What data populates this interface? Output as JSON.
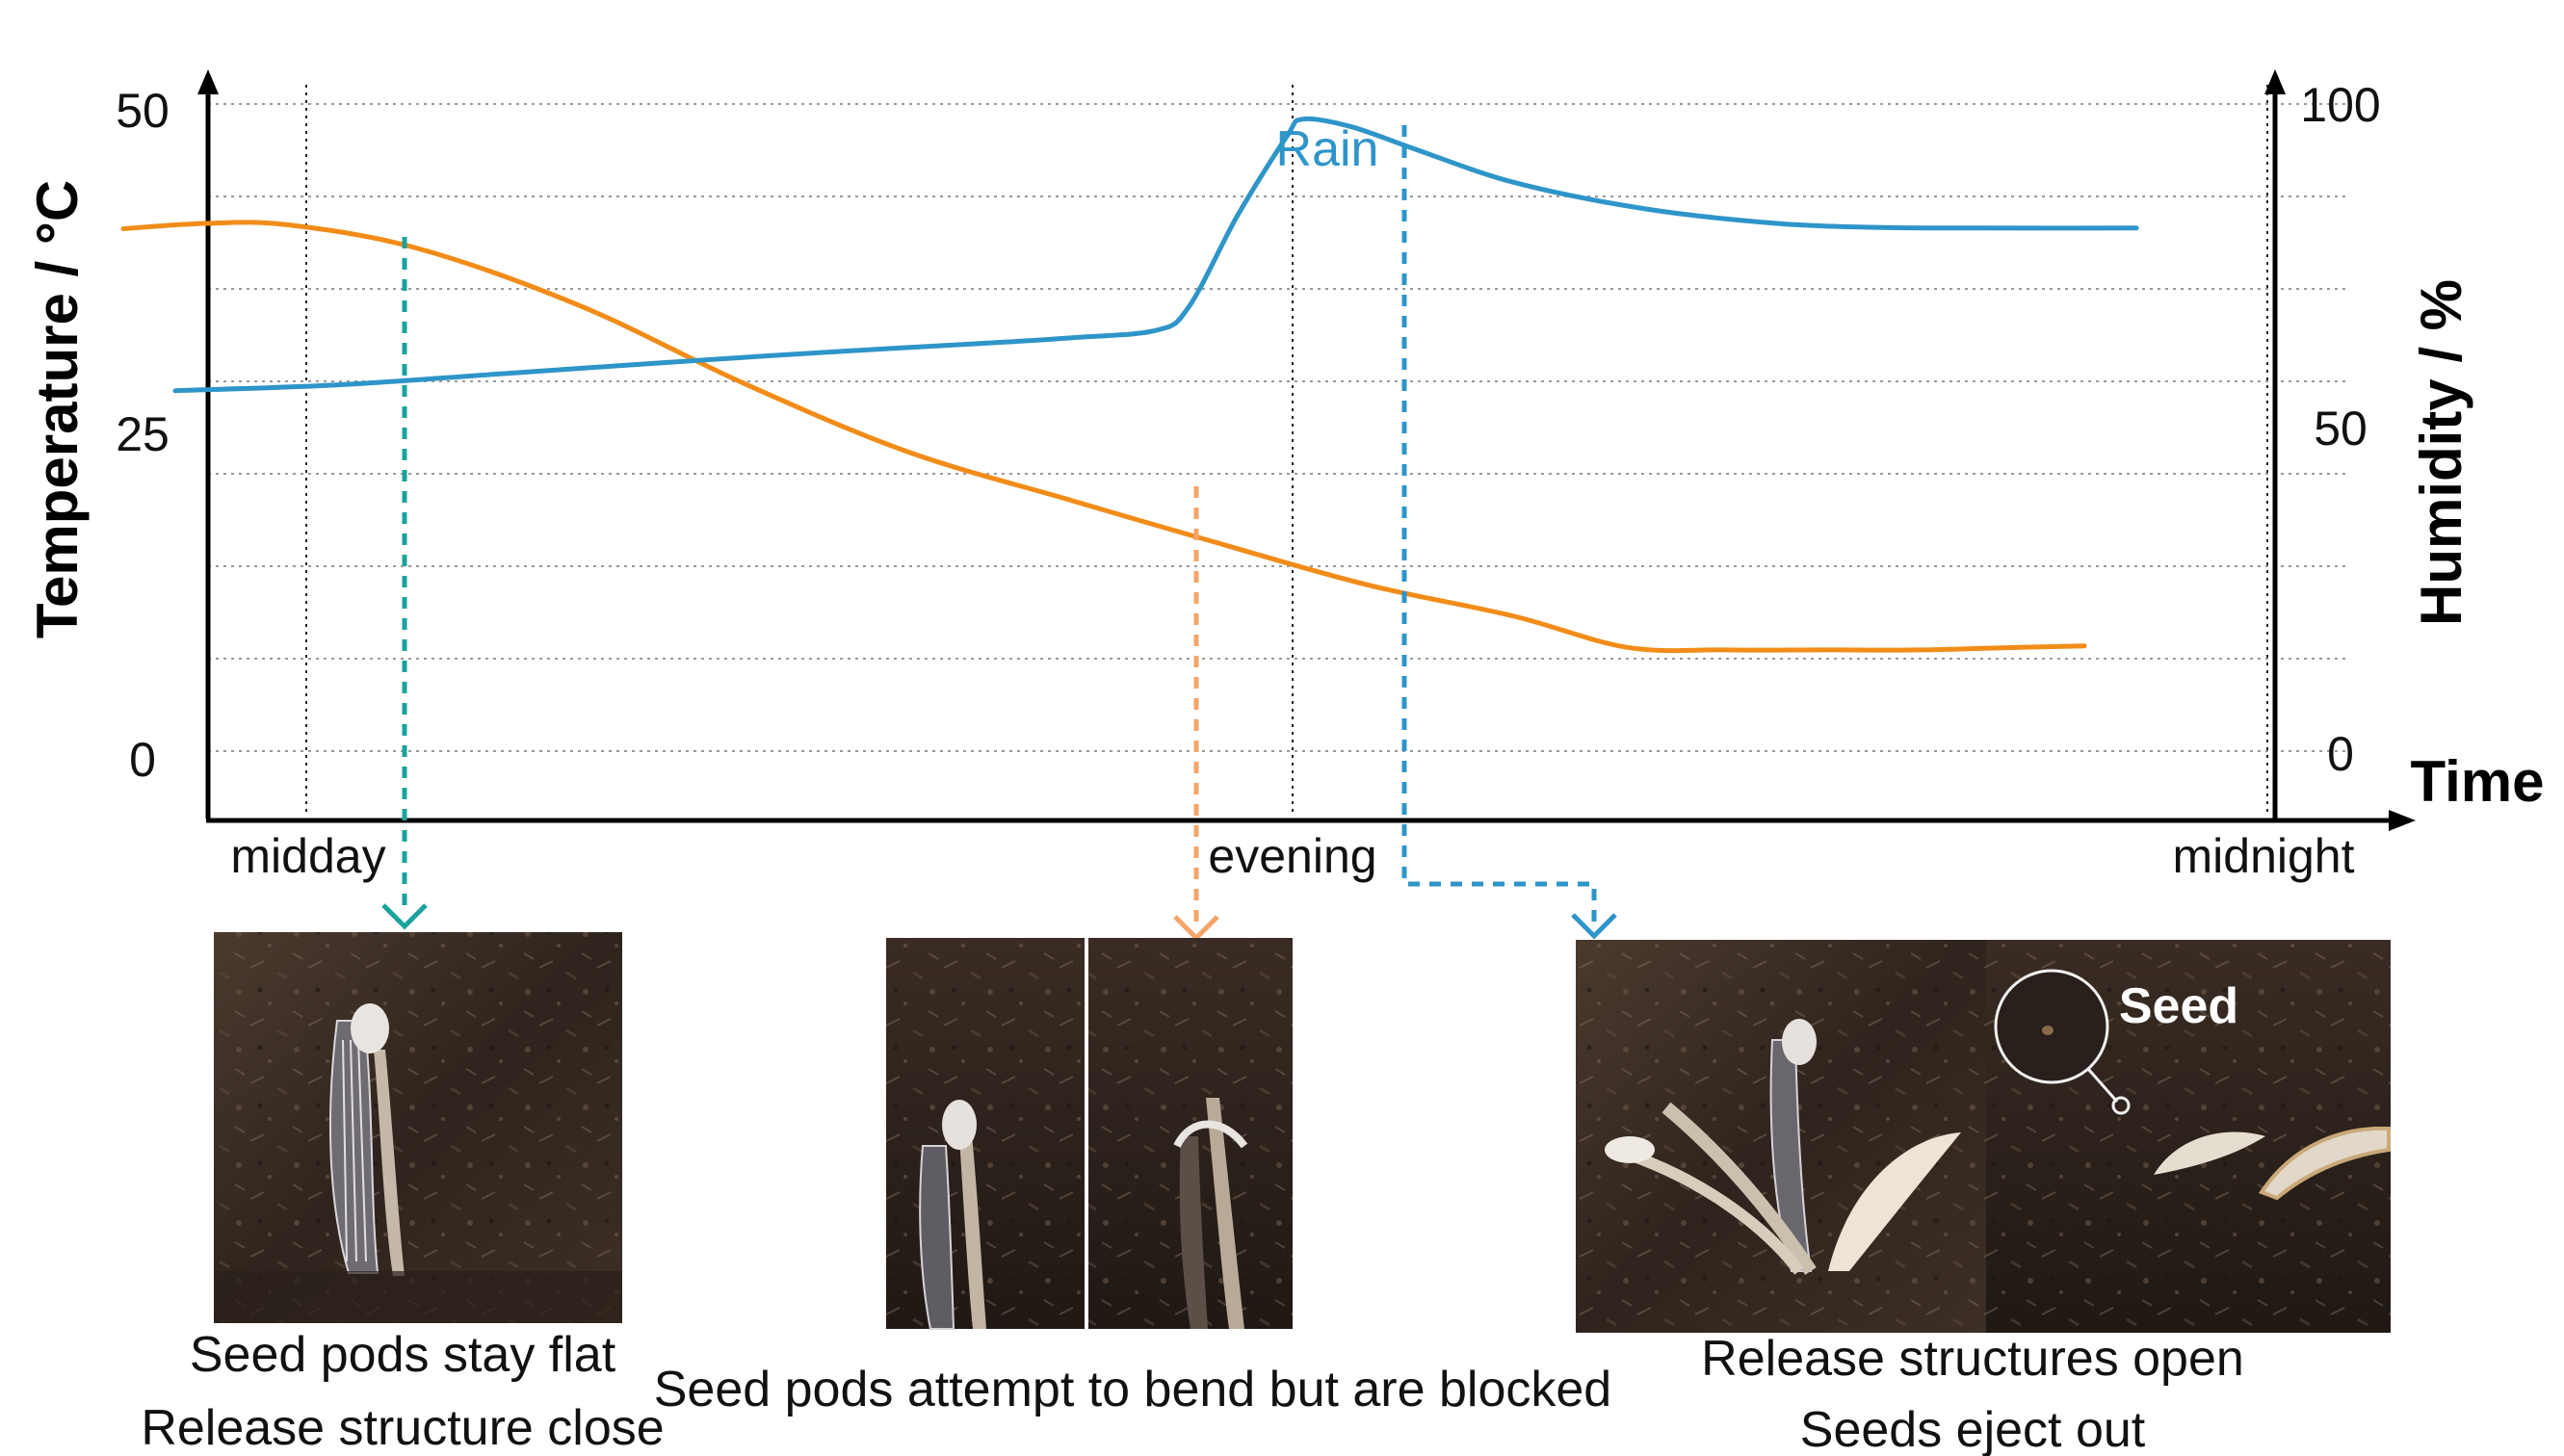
{
  "chart_data": {
    "type": "line",
    "xlabel": "Time",
    "x": [
      "midday",
      "evening",
      "midnight"
    ],
    "y_left": {
      "label": "Temperature / °C",
      "ticks": [
        0,
        25,
        50
      ],
      "range": [
        -4.3,
        50
      ]
    },
    "y_right": {
      "label": "Humidity / %",
      "ticks": [
        0,
        50,
        100
      ],
      "range": [
        -8.6,
        100
      ]
    },
    "grid": "horizontal dotted",
    "series": [
      {
        "axis": "left",
        "color": "#f28c18",
        "points": [
          [
            0.0,
            40.5
          ],
          [
            0.05,
            40.9
          ],
          [
            0.1,
            40.8
          ],
          [
            0.18,
            39.0
          ],
          [
            0.28,
            34.6
          ],
          [
            0.38,
            28.7
          ],
          [
            0.48,
            23.5
          ],
          [
            0.58,
            19.8
          ],
          [
            0.66,
            16.9
          ],
          [
            0.76,
            13.4
          ],
          [
            0.85,
            11.0
          ],
          [
            0.92,
            8.6
          ],
          [
            0.98,
            8.4
          ],
          [
            1.04,
            8.4
          ],
          [
            1.1,
            8.4
          ],
          [
            1.16,
            8.6
          ],
          [
            1.2,
            8.7
          ]
        ]
      },
      {
        "axis": "right",
        "color": "#2e95c9",
        "points": [
          [
            0.0,
            56.3
          ],
          [
            0.1,
            57.2
          ],
          [
            0.2,
            58.9
          ],
          [
            0.3,
            60.6
          ],
          [
            0.4,
            62.2
          ],
          [
            0.5,
            63.6
          ],
          [
            0.55,
            64.4
          ],
          [
            0.6,
            65.5
          ],
          [
            0.62,
            69.0
          ],
          [
            0.65,
            83.0
          ],
          [
            0.68,
            95.0
          ],
          [
            0.69,
            97.7
          ],
          [
            0.72,
            96.5
          ],
          [
            0.76,
            93.0
          ],
          [
            0.82,
            88.0
          ],
          [
            0.9,
            84.0
          ],
          [
            0.98,
            81.8
          ],
          [
            1.04,
            81.2
          ],
          [
            1.1,
            81.1
          ],
          [
            1.2,
            81.1
          ]
        ]
      }
    ],
    "annotations": [
      {
        "text": "Rain",
        "color": "#2e95c9"
      }
    ],
    "colors": {
      "temperature": "#f28c18",
      "humidity": "#2e95c9",
      "stage1_arrow": "#1aa39a",
      "stage2_arrow": "#f5a46a",
      "stage3_arrow": "#2e95c9"
    }
  },
  "stages": [
    {
      "caption_lines": [
        "Seed pods stay flat",
        "Release structure close"
      ]
    },
    {
      "caption_lines": [
        "Seed pods attempt to bend but are blocked"
      ]
    },
    {
      "caption_lines": [
        "Release structures open",
        "Seeds eject out"
      ],
      "inset_label": "Seed"
    }
  ]
}
